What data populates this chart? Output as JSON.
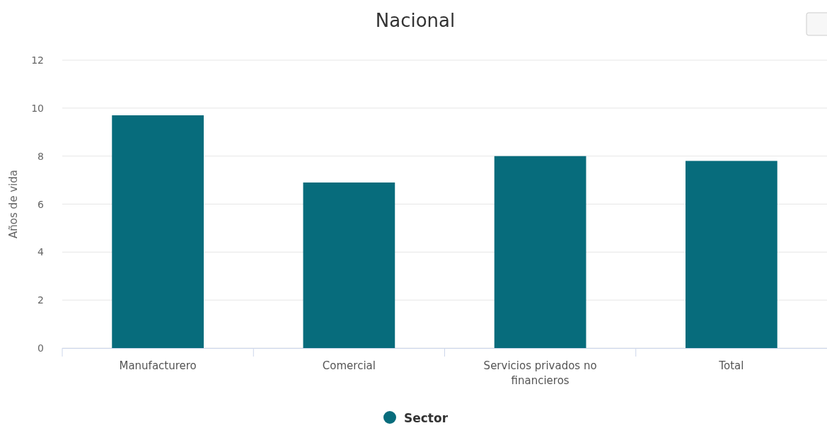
{
  "chart_data": {
    "type": "bar",
    "title": "Nacional",
    "ylabel": "Años de vida",
    "categories": [
      "Manufacturero",
      "Comercial",
      "Servicios privados no financieros",
      "Total"
    ],
    "series": [
      {
        "name": "Sector",
        "color": "#076c7c",
        "values": [
          9.7,
          6.9,
          8.0,
          7.8
        ]
      }
    ],
    "ylim": [
      0,
      12
    ],
    "yticks": [
      0,
      2,
      4,
      6,
      8,
      10,
      12
    ],
    "grid": "y",
    "legend": "bottom"
  }
}
